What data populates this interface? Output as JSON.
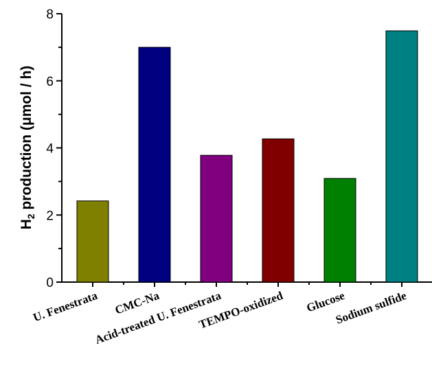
{
  "chart_data": {
    "type": "bar",
    "title": "",
    "xlabel": "",
    "ylabel_main": "H",
    "ylabel_sub": "2",
    "ylabel_rest": " production (μmol / h)",
    "categories": [
      "U. Fenestrata",
      "CMC-Na",
      "Acid-treated U. Fenestrata",
      "TEMPO-oxidized",
      "Glucose",
      "Sodium sulfide"
    ],
    "values": [
      2.42,
      7.0,
      3.78,
      4.27,
      3.09,
      7.49
    ],
    "colors": [
      "#808000",
      "#000080",
      "#800080",
      "#800000",
      "#008000",
      "#008080"
    ],
    "ylim": [
      0,
      8
    ],
    "yticks": [
      "0",
      "2",
      "4",
      "6",
      "8"
    ],
    "grid": false
  }
}
